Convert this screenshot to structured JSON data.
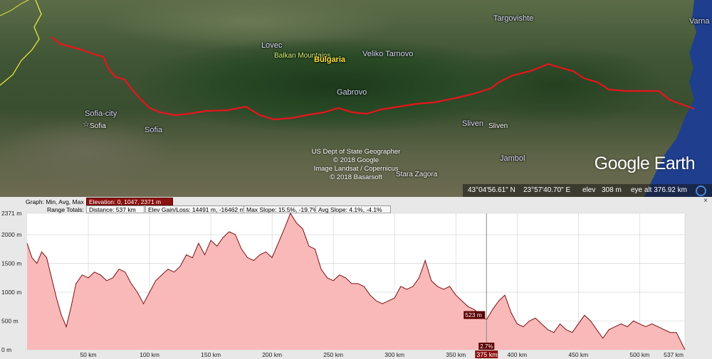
{
  "map": {
    "labels": {
      "targovishte": "Targovishte",
      "varna": "Varna",
      "lovec": "Lovec",
      "balkan": "Balkan Mountains",
      "bulgaria": "Bulgaria",
      "veliko": "Veliko Tarnovo",
      "gabrovo": "Gabrovo",
      "sofia_city": "Sofia-city",
      "sofia1": "Sofia",
      "sofia2": "Sofia",
      "sliven1": "Sliven",
      "sliven2": "Sliven",
      "jambol": "Jambol",
      "stara": "Stara Zagora"
    },
    "credits": [
      "US Dept of State Geographer",
      "© 2018 Google",
      "Image Landsat / Copernicus",
      "© 2018 Basarsoft"
    ],
    "logo": "Google Earth",
    "route_color": "#e8141c"
  },
  "status": {
    "lat": "43°04'56.61\" N",
    "lon": "23°57'40.70\" E",
    "elev_label": "elev",
    "elev": "308 m",
    "eye_alt": "eye alt 376.92 km"
  },
  "profile": {
    "graph_label": "Graph: Min, Avg, Max",
    "graph_value": "Elevation: 0, 1047, 2371 m",
    "totals_label": "Range Totals:",
    "distance": "Distance: 537 km",
    "elev_gain": "Elev Gain/Loss: 14491 m, -16462 m",
    "max_slope": "Max Slope: 15.5%, -19.7%",
    "avg_slope": "Avg Slope: 4.1%, -4.1%",
    "close": "×",
    "cursor_elev": "523 m",
    "cursor_slope": "2.7%",
    "cursor_dist": "375 km"
  },
  "chart_data": {
    "type": "area",
    "title": "",
    "xlabel": "",
    "ylabel": "",
    "xlim": [
      0,
      537
    ],
    "ylim": [
      0,
      2371
    ],
    "fill_color": "#f7b3b3",
    "line_color": "#7a1010",
    "y_ticks": [
      "2371 m",
      "2000 m",
      "1500 m",
      "1000 m",
      "500 m",
      "0 m"
    ],
    "y_tick_values": [
      2371,
      2000,
      1500,
      1000,
      500,
      0
    ],
    "x_ticks": [
      "50 km",
      "100 km",
      "150 km",
      "200 km",
      "250 km",
      "300 km",
      "350 km",
      "400 km",
      "450 km",
      "500 km",
      "537 km"
    ],
    "x_tick_values": [
      50,
      100,
      150,
      200,
      250,
      300,
      350,
      400,
      450,
      500,
      537
    ],
    "cursor": {
      "x": 375,
      "y": 523
    },
    "series": [
      {
        "x": [
          0,
          4,
          8,
          12,
          16,
          20,
          24,
          28,
          32,
          36,
          40,
          45,
          50,
          55,
          60,
          65,
          70,
          75,
          80,
          85,
          90,
          95,
          100,
          105,
          110,
          115,
          120,
          125,
          130,
          135,
          140,
          145,
          150,
          155,
          160,
          165,
          170,
          175,
          180,
          185,
          190,
          195,
          200,
          205,
          210,
          215,
          220,
          225,
          230,
          235,
          240,
          245,
          250,
          255,
          260,
          265,
          270,
          275,
          280,
          285,
          290,
          295,
          300,
          305,
          310,
          315,
          320,
          325,
          330,
          335,
          340,
          345,
          350,
          355,
          360,
          365,
          370,
          375,
          380,
          385,
          390,
          395,
          400,
          405,
          410,
          415,
          420,
          425,
          430,
          435,
          440,
          445,
          450,
          455,
          460,
          465,
          470,
          475,
          480,
          485,
          490,
          495,
          500,
          505,
          510,
          515,
          520,
          525,
          530,
          537
        ],
        "y": [
          1850,
          1600,
          1500,
          1700,
          1600,
          1250,
          900,
          600,
          400,
          750,
          1150,
          1300,
          1250,
          1350,
          1300,
          1200,
          1250,
          1400,
          1350,
          1150,
          1000,
          800,
          1000,
          1200,
          1300,
          1400,
          1350,
          1450,
          1650,
          1600,
          1850,
          1650,
          1900,
          1800,
          1950,
          2050,
          2000,
          1750,
          1600,
          1550,
          1650,
          1700,
          1600,
          1850,
          2100,
          2371,
          2200,
          2100,
          1800,
          1750,
          1400,
          1250,
          1200,
          1300,
          1250,
          1150,
          1150,
          1100,
          950,
          850,
          800,
          850,
          900,
          1100,
          1050,
          1100,
          1250,
          1550,
          1200,
          1100,
          1050,
          1100,
          950,
          850,
          750,
          700,
          600,
          523,
          700,
          850,
          950,
          650,
          450,
          400,
          500,
          550,
          450,
          350,
          300,
          450,
          350,
          300,
          450,
          600,
          500,
          350,
          200,
          350,
          400,
          450,
          400,
          500,
          450,
          400,
          450,
          400,
          350,
          300,
          300,
          0
        ]
      }
    ]
  }
}
